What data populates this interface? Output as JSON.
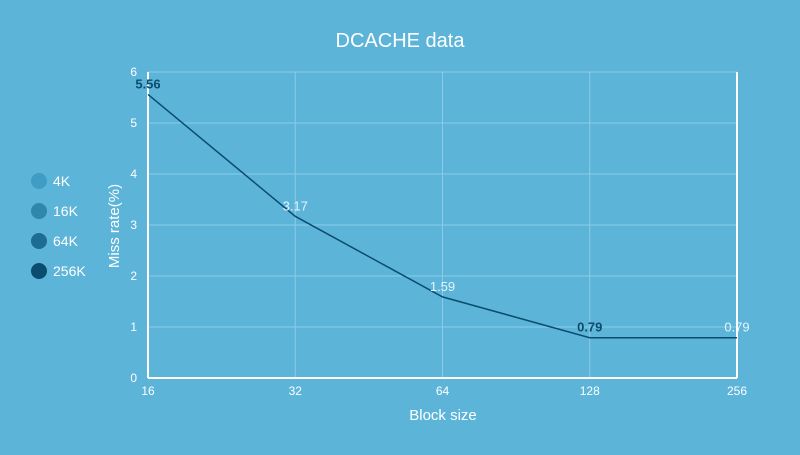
{
  "chart_data": {
    "type": "line",
    "title": "DCACHE data",
    "xlabel": "Block size",
    "ylabel": "Miss rate(%)",
    "x": [
      "16",
      "32",
      "64",
      "128",
      "256"
    ],
    "xscale": "categorical",
    "ylim": [
      0,
      6
    ],
    "yticks": [
      "0",
      "1",
      "2",
      "3",
      "4",
      "5",
      "6"
    ],
    "grid": true,
    "legend_position": "left",
    "legend": [
      {
        "name": "4K",
        "color": "#3f9cc4"
      },
      {
        "name": "16K",
        "color": "#2f87ae"
      },
      {
        "name": "64K",
        "color": "#1c6c93"
      },
      {
        "name": "256K",
        "color": "#0a4d6e"
      }
    ],
    "series": [
      {
        "name": "256K",
        "color": "#0a4d6e",
        "values": [
          5.56,
          3.17,
          1.59,
          0.79,
          0.79
        ],
        "labels": [
          "5.56",
          "3.17",
          "1.59",
          "0.79",
          "0.79"
        ]
      }
    ],
    "colors": {
      "background": "#5db4d9",
      "grid": "#8ccbe6",
      "axis": "#ffffff",
      "text": "#ffffff",
      "label_dark": "#0a4d6e",
      "label_light": "#e6f4fb"
    }
  }
}
